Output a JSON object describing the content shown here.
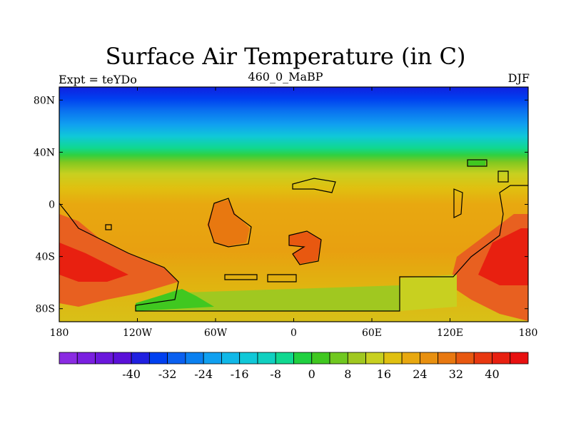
{
  "title": "Surface Air Temperature (in C)",
  "subtitle_left": "Expt = teYDo",
  "subtitle_center": "460_0_MaBP",
  "subtitle_right": "DJF",
  "lat_ticks": [
    "80N",
    "40N",
    "0",
    "40S",
    "80S"
  ],
  "lon_ticks": [
    "180",
    "120W",
    "60W",
    "0",
    "60E",
    "120E",
    "180"
  ],
  "colorbar": {
    "labels": [
      "-40",
      "-32",
      "-24",
      "-16",
      "-8",
      "0",
      "8",
      "16",
      "24",
      "32",
      "40"
    ],
    "colors": [
      "#8a2be2",
      "#7a1fe0",
      "#6a17dc",
      "#5a10d8",
      "#2020e0",
      "#0040f0",
      "#0a60f0",
      "#0a80f0",
      "#10a0f0",
      "#10b8e8",
      "#10c8d8",
      "#10d0c0",
      "#10d890",
      "#20d040",
      "#40c820",
      "#70c820",
      "#a0c820",
      "#c8d020",
      "#e0c010",
      "#e8a810",
      "#e89010",
      "#e87810",
      "#e85810",
      "#e83810",
      "#e82010",
      "#e81010"
    ]
  },
  "chart_data": {
    "type": "heatmap",
    "title": "Surface Air Temperature (in C)",
    "subtitle_left": "Expt = teYDo",
    "subtitle_center": "460_0_MaBP",
    "subtitle_right": "DJF",
    "x_range": [
      -180,
      180
    ],
    "y_range": [
      -90,
      90
    ],
    "x_ticks": [
      "180",
      "120W",
      "60W",
      "0",
      "60E",
      "120E",
      "180"
    ],
    "y_ticks": [
      "80N",
      "40N",
      "0",
      "40S",
      "80S"
    ],
    "contour_levels": [
      -44,
      -40,
      -36,
      -32,
      -28,
      -24,
      -20,
      -16,
      -12,
      -8,
      -4,
      0,
      4,
      8,
      12,
      16,
      20,
      24,
      28,
      32,
      36,
      40,
      44
    ],
    "zonal_bands": [
      {
        "lat": 90,
        "value": -40
      },
      {
        "lat": 84,
        "value": -32
      },
      {
        "lat": 78,
        "value": -24
      },
      {
        "lat": 70,
        "value": -16
      },
      {
        "lat": 62,
        "value": -8
      },
      {
        "lat": 55,
        "value": 0
      },
      {
        "lat": 46,
        "value": 8
      },
      {
        "lat": 38,
        "value": 16
      },
      {
        "lat": 30,
        "value": 22
      },
      {
        "lat": 15,
        "value": 26
      },
      {
        "lat": 0,
        "value": 28
      },
      {
        "lat": -30,
        "value": 28
      },
      {
        "lat": -60,
        "value": 24
      },
      {
        "lat": -80,
        "value": 20
      }
    ]
  }
}
